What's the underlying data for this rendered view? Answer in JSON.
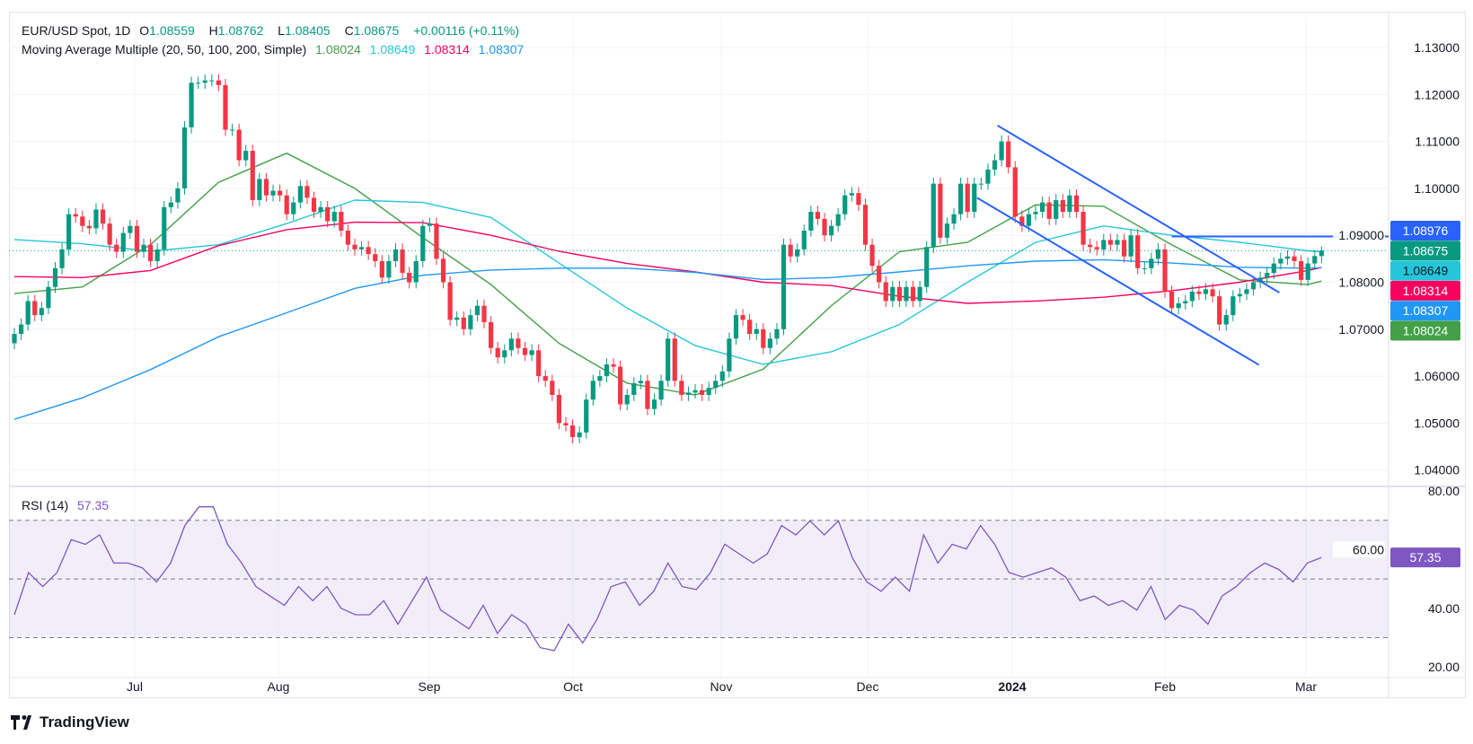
{
  "header": {
    "symbol": "EUR/USD Spot, 1D",
    "open_label": "O",
    "open": "1.08559",
    "high_label": "H",
    "high": "1.08762",
    "low_label": "L",
    "low": "1.08405",
    "close_label": "C",
    "close": "1.08675",
    "change": "+0.00116 (+0.11%)",
    "ma_title": "Moving Average Multiple (20, 50, 100, 200, Simple)",
    "ma20": "1.08024",
    "ma50": "1.08649",
    "ma100": "1.08314",
    "ma200": "1.08307"
  },
  "rsi_legend": {
    "title": "RSI (14)",
    "value": "57.35"
  },
  "price_axis": [
    "1.13000",
    "1.12000",
    "1.11000",
    "1.10000",
    "1.09000",
    "1.08000",
    "1.07000",
    "1.06000",
    "1.05000",
    "1.04000"
  ],
  "rsi_axis": [
    "80.00",
    "60.00",
    "40.00",
    "20.00"
  ],
  "time_axis": [
    "Jul",
    "Aug",
    "Sep",
    "Oct",
    "Nov",
    "Dec",
    "2024",
    "Feb",
    "Mar"
  ],
  "price_labels": [
    {
      "text": "1.08976",
      "bg": "#2962ff",
      "fg": "#ffffff"
    },
    {
      "text": "1.08675",
      "bg": "#089981",
      "fg": "#ffffff"
    },
    {
      "text": "1.08649",
      "bg": "#26c6da",
      "fg": "#131722"
    },
    {
      "text": "1.08314",
      "bg": "#f7025f",
      "fg": "#ffffff"
    },
    {
      "text": "1.08307",
      "bg": "#2196f3",
      "fg": "#ffffff"
    },
    {
      "text": "1.08024",
      "bg": "#43a047",
      "fg": "#ffffff"
    }
  ],
  "brand": "TradingView",
  "colors": {
    "up": "#089981",
    "down": "#f23645",
    "ma20": "#43a047",
    "ma50": "#26c6da",
    "ma100": "#f7025f",
    "ma200": "#2196f3",
    "rsi": "#7e57c2",
    "trendline": "#2962ff"
  },
  "chart_data": {
    "type": "candlestick",
    "title": "EUR/USD Spot, 1D",
    "ylim": [
      1.04,
      1.13
    ],
    "grid": true,
    "closes": [
      1.069,
      1.071,
      1.076,
      1.073,
      1.0745,
      1.079,
      1.083,
      1.087,
      1.0945,
      1.094,
      1.092,
      1.0915,
      1.0955,
      1.0925,
      1.088,
      1.0865,
      1.0905,
      1.092,
      1.0865,
      1.088,
      1.0845,
      1.087,
      1.096,
      1.097,
      1.1,
      1.113,
      1.1225,
      1.1225,
      1.123,
      1.123,
      1.122,
      1.1125,
      1.1125,
      1.106,
      1.108,
      1.0975,
      1.102,
      1.0985,
      1.0995,
      1.0985,
      1.0945,
      1.097,
      1.1005,
      1.098,
      1.095,
      1.096,
      1.093,
      1.095,
      1.091,
      1.088,
      1.087,
      1.0875,
      1.086,
      1.0845,
      1.081,
      1.0845,
      1.087,
      1.082,
      1.08,
      1.0845,
      1.092,
      1.0925,
      1.085,
      1.08,
      1.072,
      1.0725,
      1.07,
      1.073,
      1.075,
      1.0715,
      1.066,
      1.064,
      1.0655,
      1.068,
      1.066,
      1.0645,
      1.0655,
      1.06,
      1.059,
      1.056,
      1.05,
      1.0495,
      1.047,
      1.048,
      1.055,
      1.059,
      1.06,
      1.0625,
      1.062,
      1.054,
      1.056,
      1.0585,
      1.059,
      1.053,
      1.055,
      1.059,
      1.068,
      1.059,
      1.056,
      1.0565,
      1.057,
      1.056,
      1.0575,
      1.059,
      1.061,
      1.068,
      1.073,
      1.072,
      1.069,
      1.07,
      1.066,
      1.068,
      1.07,
      1.088,
      1.0855,
      1.087,
      1.091,
      1.095,
      1.0935,
      1.09,
      1.092,
      1.0945,
      1.0985,
      1.099,
      1.0965,
      1.088,
      1.0835,
      1.08,
      1.076,
      1.079,
      1.076,
      1.079,
      1.076,
      1.079,
      1.0875,
      1.101,
      1.0895,
      1.0925,
      1.0945,
      1.101,
      1.095,
      1.101,
      1.101,
      1.104,
      1.106,
      1.11,
      1.1045,
      1.094,
      1.092,
      1.0945,
      1.095,
      1.097,
      1.0935,
      1.0975,
      1.095,
      1.0985,
      1.095,
      1.088,
      1.0875,
      1.087,
      1.089,
      1.088,
      1.089,
      1.0855,
      1.09,
      1.083,
      1.083,
      1.085,
      1.087,
      1.078,
      1.0745,
      1.0755,
      1.076,
      1.078,
      1.0775,
      1.0785,
      1.077,
      1.071,
      1.073,
      1.077,
      1.0775,
      1.0785,
      1.08,
      1.081,
      1.082,
      1.084,
      1.085,
      1.0855,
      1.0845,
      1.0805,
      1.084,
      1.08559,
      1.08675
    ],
    "last_bar": {
      "open": 1.08559,
      "high": 1.08762,
      "low": 1.08405,
      "close": 1.08675
    },
    "moving_averages": [
      {
        "name": "20",
        "values": [
          1.0776,
          1.079,
          1.088,
          1.1013,
          1.1075,
          1.1,
          1.0895,
          1.0795,
          1.067,
          1.0585,
          1.056,
          1.0615,
          1.075,
          1.0865,
          1.0885,
          1.0965,
          1.0962,
          1.088,
          1.0805,
          1.0795,
          1.08024
        ]
      },
      {
        "name": "50",
        "values": [
          1.0891,
          1.0882,
          1.0866,
          1.088,
          1.0925,
          1.0975,
          1.097,
          1.0938,
          1.0841,
          1.0745,
          1.0665,
          1.0625,
          1.0652,
          1.071,
          1.08,
          1.0885,
          1.092,
          1.09,
          1.0885,
          1.0867,
          1.08649
        ]
      },
      {
        "name": "100",
        "values": [
          1.0812,
          1.081,
          1.0825,
          1.0878,
          1.0912,
          1.0928,
          1.0927,
          1.09,
          1.0866,
          1.084,
          1.0822,
          1.08,
          1.0793,
          1.077,
          1.0755,
          1.076,
          1.0768,
          1.0782,
          1.08,
          1.0825,
          1.08314
        ]
      },
      {
        "name": "200",
        "values": [
          1.0508,
          1.0554,
          1.0614,
          1.0684,
          1.0735,
          1.0787,
          1.0815,
          1.0826,
          1.083,
          1.083,
          1.0821,
          1.0806,
          1.081,
          1.0822,
          1.0835,
          1.0845,
          1.0848,
          1.0841,
          1.0832,
          1.083,
          1.08307
        ]
      }
    ],
    "horizontal_level": 1.08976,
    "rsi": {
      "period": 14,
      "ylim": [
        20,
        80
      ],
      "bands": [
        30,
        50,
        70
      ],
      "values": [
        37.8,
        52.2,
        47.4,
        52.2,
        63.4,
        61.8,
        65.0,
        55.4,
        55.4,
        53.8,
        49.0,
        55.4,
        68.2,
        74.6,
        74.6,
        61.8,
        55.4,
        47.4,
        44.2,
        41.0,
        47.4,
        42.6,
        47.4,
        40.0,
        37.8,
        37.8,
        42.6,
        34.6,
        42.6,
        50.6,
        39.4,
        36.2,
        33.0,
        41.0,
        31.4,
        37.8,
        34.6,
        26.6,
        25.6,
        34.6,
        28.2,
        36.2,
        47.4,
        49.0,
        41.0,
        45.8,
        55.4,
        47.4,
        46.4,
        52.2,
        61.8,
        58.6,
        55.4,
        58.6,
        68.2,
        65.0,
        69.8,
        65.0,
        69.8,
        57.0,
        49.0,
        45.8,
        50.6,
        45.8,
        65.0,
        55.4,
        61.8,
        60.2,
        68.2,
        61.8,
        52.2,
        50.6,
        52.2,
        53.8,
        50.6,
        42.6,
        44.2,
        41.0,
        42.6,
        39.4,
        47.4,
        36.2,
        41.0,
        39.4,
        34.6,
        44.2,
        47.4,
        52.2,
        55.4,
        53.2,
        49.0,
        55.4,
        57.35
      ]
    }
  }
}
